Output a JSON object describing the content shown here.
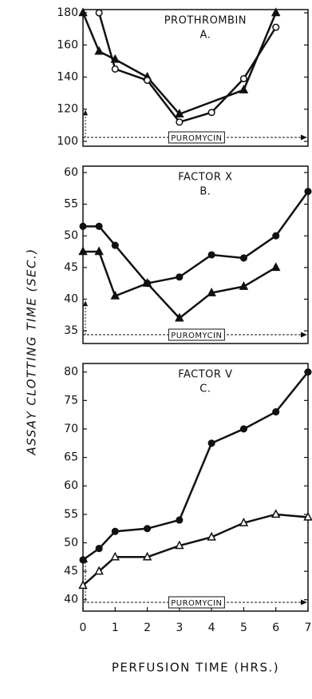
{
  "chart_data": [
    {
      "type": "line",
      "title": "PROTHROMBIN",
      "subtitle": "A.",
      "annotation": "PUROMYCIN",
      "xlim": [
        0,
        7
      ],
      "ylim": [
        97,
        182
      ],
      "yticks": [
        100,
        120,
        140,
        160,
        180
      ],
      "series": [
        {
          "color": "#111111",
          "marker": "triangle-filled",
          "x": [
            0,
            0.5,
            1,
            2,
            3,
            5,
            6
          ],
          "values": [
            180,
            156,
            151,
            140,
            117,
            132,
            180
          ]
        },
        {
          "color": "#111111",
          "marker": "circle-open",
          "x": [
            0.5,
            1,
            2,
            3,
            4,
            5,
            6
          ],
          "values": [
            180,
            145,
            138,
            112,
            118,
            139,
            171
          ]
        }
      ]
    },
    {
      "type": "line",
      "title": "FACTOR X",
      "subtitle": "B.",
      "annotation": "PUROMYCIN",
      "ylabel": "ASSAY CLOTTING TIME (SEC.)",
      "xlim": [
        0,
        7
      ],
      "ylim": [
        33,
        61
      ],
      "yticks": [
        35,
        40,
        45,
        50,
        55,
        60
      ],
      "series": [
        {
          "color": "#111111",
          "marker": "circle-filled",
          "x": [
            0,
            0.5,
            1,
            2,
            3,
            4,
            5,
            6,
            7
          ],
          "values": [
            51.5,
            51.5,
            48.5,
            42.5,
            43.5,
            47,
            46.5,
            50,
            57
          ]
        },
        {
          "color": "#111111",
          "marker": "triangle-filled",
          "x": [
            0,
            0.5,
            1,
            2,
            3,
            4,
            5,
            6
          ],
          "values": [
            47.5,
            47.5,
            40.5,
            42.5,
            37,
            41,
            42,
            45
          ]
        }
      ]
    },
    {
      "type": "line",
      "title": "FACTOR V",
      "subtitle": "C.",
      "annotation": "PUROMYCIN",
      "xlabel": "PERFUSION TIME (HRS.)",
      "xlim": [
        0,
        7
      ],
      "xticks": [
        0,
        1,
        2,
        3,
        4,
        5,
        6,
        7
      ],
      "ylim": [
        38,
        81.5
      ],
      "yticks": [
        40,
        45,
        50,
        55,
        60,
        65,
        70,
        75,
        80
      ],
      "series": [
        {
          "color": "#111111",
          "marker": "circle-filled",
          "x": [
            0,
            0.5,
            1,
            2,
            3,
            4,
            5,
            6,
            7
          ],
          "values": [
            47,
            49,
            52,
            52.5,
            54,
            67.5,
            70,
            73,
            80
          ]
        },
        {
          "color": "#111111",
          "marker": "triangle-open",
          "x": [
            0,
            0.5,
            1,
            2,
            3,
            4,
            5,
            6,
            7
          ],
          "values": [
            42.5,
            45,
            47.5,
            47.5,
            49.5,
            51,
            53.5,
            55,
            54.5
          ]
        }
      ]
    }
  ]
}
